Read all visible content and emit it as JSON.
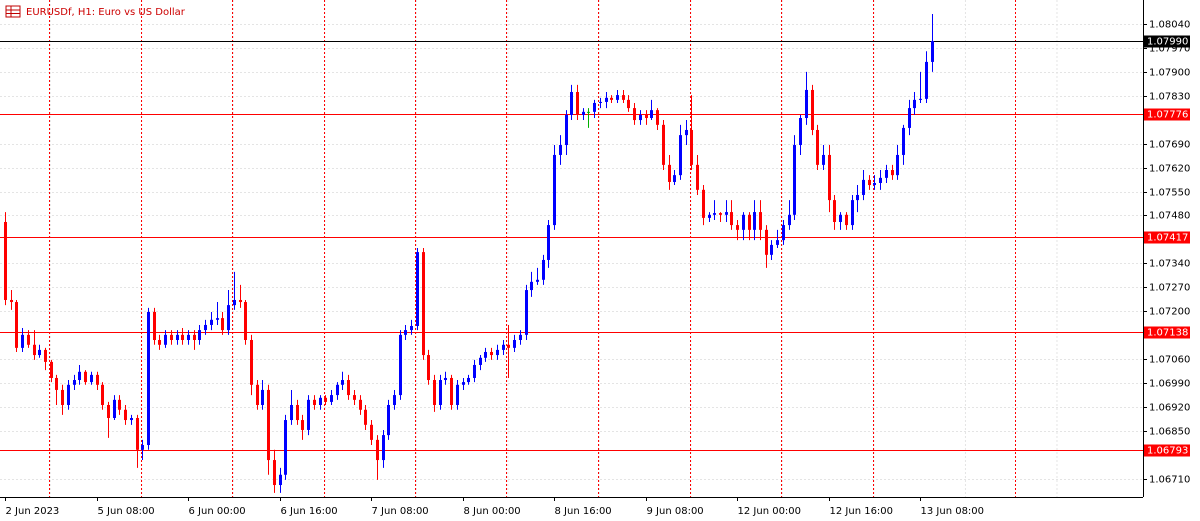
{
  "chart_data": {
    "type": "candlestick",
    "title": "EURUSDf, H1:  Euro vs US Dollar",
    "title_color": "#cc0000",
    "up_color": "#0000ff",
    "down_color": "#ff0000",
    "doji_color": "#00b000",
    "level_color": "#ff0000",
    "bid_color": "#000000",
    "grid": true,
    "ylim": [
      1.06657,
      1.0811
    ],
    "yticks": [
      {
        "value": 1.0804,
        "label": "1.08040"
      },
      {
        "value": 1.0797,
        "label": "1.07970"
      },
      {
        "value": 1.079,
        "label": "1.07900"
      },
      {
        "value": 1.0783,
        "label": "1.07830"
      },
      {
        "value": 1.0769,
        "label": "1.07690"
      },
      {
        "value": 1.0762,
        "label": "1.07620"
      },
      {
        "value": 1.0755,
        "label": "1.07550"
      },
      {
        "value": 1.0748,
        "label": "1.07480"
      },
      {
        "value": 1.0734,
        "label": "1.07340"
      },
      {
        "value": 1.0727,
        "label": "1.07270"
      },
      {
        "value": 1.072,
        "label": "1.07200"
      },
      {
        "value": 1.0706,
        "label": "1.07060"
      },
      {
        "value": 1.0699,
        "label": "1.06990"
      },
      {
        "value": 1.0692,
        "label": "1.06920"
      },
      {
        "value": 1.0685,
        "label": "1.06850"
      },
      {
        "value": 1.0671,
        "label": "1.06710"
      }
    ],
    "levels": [
      1.07776,
      1.07417,
      1.07138,
      1.06793
    ],
    "bid": {
      "value": 1.0799,
      "label": "1.07990"
    },
    "categories": [
      "2 Jun 2023",
      null,
      null,
      null,
      null,
      null,
      null,
      null,
      null,
      null,
      null,
      null,
      null,
      null,
      null,
      null,
      "5 Jun 08:00",
      null,
      null,
      null,
      null,
      null,
      null,
      null,
      null,
      null,
      null,
      null,
      null,
      null,
      null,
      null,
      "6 Jun 00:00",
      null,
      null,
      null,
      null,
      null,
      null,
      null,
      null,
      null,
      null,
      null,
      null,
      null,
      null,
      null,
      "6 Jun 16:00",
      null,
      null,
      null,
      null,
      null,
      null,
      null,
      null,
      null,
      null,
      null,
      null,
      null,
      null,
      null,
      "7 Jun 08:00",
      null,
      null,
      null,
      null,
      null,
      null,
      null,
      null,
      null,
      null,
      null,
      null,
      null,
      null,
      null,
      "8 Jun 00:00",
      null,
      null,
      null,
      null,
      null,
      null,
      null,
      null,
      null,
      null,
      null,
      null,
      null,
      null,
      null,
      "8 Jun 16:00",
      null,
      null,
      null,
      null,
      null,
      null,
      null,
      null,
      null,
      null,
      null,
      null,
      null,
      null,
      null,
      "9 Jun 08:00",
      null,
      null,
      null,
      null,
      null,
      null,
      null,
      null,
      null,
      null,
      null,
      null,
      null,
      null,
      null,
      "12 Jun 00:00",
      null,
      null,
      null,
      null,
      null,
      null,
      null,
      null,
      null,
      null,
      null,
      null,
      null,
      null,
      null,
      "12 Jun 16:00",
      null,
      null,
      null,
      null,
      null,
      null,
      null,
      null,
      null,
      null,
      null,
      null,
      null,
      null,
      null,
      "13 Jun 08:00",
      null,
      null
    ],
    "open": [
      1.07461,
      1.07233,
      1.07227,
      1.07093,
      1.07131,
      1.07102,
      1.07072,
      1.07087,
      1.07052,
      1.07005,
      1.0697,
      1.06926,
      1.06985,
      1.06999,
      1.07023,
      1.06993,
      1.07014,
      1.06985,
      1.06926,
      1.06888,
      1.06941,
      1.06912,
      1.06882,
      1.06888,
      1.06795,
      1.06809,
      1.07198,
      1.07116,
      1.07102,
      1.07131,
      1.07116,
      1.07131,
      1.07116,
      1.07131,
      1.07116,
      1.07145,
      1.0716,
      1.07175,
      1.0718,
      1.07145,
      1.07218,
      1.07233,
      1.07227,
      1.07116,
      1.06985,
      1.06926,
      1.0697,
      1.06765,
      1.06692,
      1.06722,
      1.06882,
      1.06926,
      1.06882,
      1.06853,
      1.06941,
      1.06926,
      1.06947,
      1.06935,
      1.06955,
      1.06985,
      1.06999,
      1.06955,
      1.06941,
      1.06912,
      1.06868,
      1.06824,
      1.06765,
      1.06838,
      1.06926,
      1.06955,
      1.07131,
      1.07145,
      1.07157,
      1.07373,
      1.07072,
      1.06999,
      1.06926,
      1.06999,
      1.07005,
      1.06926,
      1.06985,
      1.06993,
      1.07005,
      1.07043,
      1.07064,
      1.07081,
      1.07072,
      1.07087,
      1.07102,
      1.07093,
      1.07116,
      1.07131,
      1.07262,
      1.07286,
      1.07292,
      1.0735,
      1.07452,
      1.07657,
      1.07686,
      1.07774,
      1.07841,
      1.07774,
      1.07783,
      1.07783,
      1.07809,
      1.07812,
      1.07824,
      1.07818,
      1.07832,
      1.07818,
      1.07794,
      1.07759,
      1.07774,
      1.07765,
      1.07788,
      1.07745,
      1.07628,
      1.07578,
      1.07598,
      1.07715,
      1.0773,
      1.07628,
      1.07555,
      1.07473,
      1.07482,
      1.07487,
      1.07482,
      1.0749,
      1.07452,
      1.07438,
      1.07482,
      1.07438,
      1.0749,
      1.07438,
      1.07365,
      1.07394,
      1.07408,
      1.07452,
      1.07482,
      1.07686,
      1.07765,
      1.07847,
      1.0773,
      1.07628,
      1.07657,
      1.07525,
      1.07461,
      1.07482,
      1.07452,
      1.07525,
      1.0754,
      1.07584,
      1.07569,
      1.07575,
      1.0759,
      1.07613,
      1.07598,
      1.07657,
      1.07736,
      1.07794,
      1.07818,
      1.07821,
      1.07929
    ],
    "high": [
      1.0749,
      1.07262,
      1.07233,
      1.07151,
      1.07145,
      1.07145,
      1.07102,
      1.07093,
      1.07058,
      1.07014,
      1.06985,
      1.06999,
      1.07014,
      1.07043,
      1.07028,
      1.07023,
      1.07023,
      1.06993,
      1.06935,
      1.06955,
      1.06955,
      1.06926,
      1.06897,
      1.06897,
      1.06824,
      1.0721,
      1.0721,
      1.07131,
      1.07145,
      1.07145,
      1.07145,
      1.07151,
      1.07145,
      1.07145,
      1.0716,
      1.07175,
      1.07198,
      1.07227,
      1.07198,
      1.07262,
      1.07315,
      1.07277,
      1.07233,
      1.07131,
      1.06999,
      1.06999,
      1.06985,
      1.06795,
      1.06742,
      1.06897,
      1.0697,
      1.06941,
      1.06897,
      1.06955,
      1.06955,
      1.06955,
      1.06955,
      1.0697,
      1.06993,
      1.07023,
      1.07014,
      1.0697,
      1.06955,
      1.06926,
      1.06882,
      1.06838,
      1.06853,
      1.06941,
      1.0697,
      1.07145,
      1.0716,
      1.07175,
      1.07385,
      1.07385,
      1.07087,
      1.07014,
      1.07014,
      1.07023,
      1.07014,
      1.06999,
      1.07005,
      1.07014,
      1.07058,
      1.07072,
      1.07093,
      1.07093,
      1.07102,
      1.07116,
      1.0716,
      1.07131,
      1.07145,
      1.07277,
      1.07315,
      1.07327,
      1.07365,
      1.07467,
      1.07686,
      1.07715,
      1.07788,
      1.07862,
      1.07862,
      1.07794,
      1.07794,
      1.07818,
      1.07824,
      1.07841,
      1.07832,
      1.07847,
      1.07847,
      1.07832,
      1.07809,
      1.07788,
      1.07788,
      1.07818,
      1.07794,
      1.07759,
      1.07657,
      1.07613,
      1.07745,
      1.07759,
      1.07832,
      1.07657,
      1.07569,
      1.0749,
      1.07525,
      1.0749,
      1.07525,
      1.07525,
      1.07467,
      1.0749,
      1.0749,
      1.07525,
      1.07525,
      1.07452,
      1.07408,
      1.07438,
      1.07467,
      1.07525,
      1.07715,
      1.07774,
      1.079,
      1.07862,
      1.07745,
      1.07686,
      1.07686,
      1.0754,
      1.0749,
      1.0749,
      1.0754,
      1.07569,
      1.07613,
      1.07598,
      1.07598,
      1.07613,
      1.07628,
      1.07628,
      1.07686,
      1.07745,
      1.07818,
      1.07841,
      1.079,
      1.0796,
      1.08069
    ],
    "low": [
      1.07218,
      1.07204,
      1.07081,
      1.07081,
      1.07093,
      1.07058,
      1.07064,
      1.07028,
      1.06993,
      1.06926,
      1.06897,
      1.06912,
      1.0697,
      1.06985,
      1.06985,
      1.06985,
      1.0697,
      1.06912,
      1.0683,
      1.06882,
      1.06897,
      1.06868,
      1.06868,
      1.06742,
      1.06765,
      1.06795,
      1.07102,
      1.07087,
      1.07093,
      1.07102,
      1.07102,
      1.07102,
      1.07102,
      1.07087,
      1.07102,
      1.07131,
      1.07145,
      1.0716,
      1.07131,
      1.07131,
      1.07204,
      1.0721,
      1.07102,
      1.06955,
      1.06912,
      1.06912,
      1.06722,
      1.06669,
      1.06669,
      1.06707,
      1.06868,
      1.06868,
      1.06824,
      1.06838,
      1.06912,
      1.06912,
      1.06926,
      1.06926,
      1.06941,
      1.0697,
      1.06941,
      1.06926,
      1.06897,
      1.06853,
      1.06809,
      1.06707,
      1.06742,
      1.06824,
      1.06912,
      1.06941,
      1.07116,
      1.07131,
      1.07145,
      1.07058,
      1.06985,
      1.06906,
      1.06912,
      1.06985,
      1.06912,
      1.06912,
      1.0697,
      1.06985,
      1.06993,
      1.07028,
      1.07052,
      1.07058,
      1.07058,
      1.07072,
      1.07005,
      1.07081,
      1.07102,
      1.07116,
      1.07242,
      1.07277,
      1.07277,
      1.07327,
      1.07438,
      1.07628,
      1.07657,
      1.07759,
      1.07759,
      1.07759,
      1.07736,
      1.07765,
      1.07794,
      1.07794,
      1.07809,
      1.07809,
      1.07809,
      1.07783,
      1.07745,
      1.07745,
      1.07745,
      1.07759,
      1.0773,
      1.07613,
      1.07555,
      1.07569,
      1.07584,
      1.07686,
      1.07613,
      1.0754,
      1.07452,
      1.07461,
      1.07467,
      1.07461,
      1.07461,
      1.07438,
      1.07408,
      1.07408,
      1.07408,
      1.07408,
      1.07408,
      1.07327,
      1.0735,
      1.07385,
      1.07394,
      1.07438,
      1.07467,
      1.07657,
      1.07745,
      1.07715,
      1.07613,
      1.07613,
      1.0749,
      1.07438,
      1.07438,
      1.07438,
      1.07438,
      1.0749,
      1.07525,
      1.07555,
      1.07555,
      1.07555,
      1.07575,
      1.07584,
      1.07584,
      1.07628,
      1.07715,
      1.07774,
      1.07809,
      1.07809,
      1.079
    ],
    "close": [
      1.07233,
      1.07227,
      1.07093,
      1.07131,
      1.07102,
      1.07072,
      1.07087,
      1.07052,
      1.07005,
      1.0697,
      1.06926,
      1.06985,
      1.06999,
      1.07023,
      1.06993,
      1.07014,
      1.06985,
      1.06926,
      1.06888,
      1.06941,
      1.06912,
      1.06882,
      1.06888,
      1.06795,
      1.06809,
      1.07198,
      1.07116,
      1.07102,
      1.07131,
      1.07116,
      1.07131,
      1.07116,
      1.07131,
      1.07116,
      1.07145,
      1.0716,
      1.07175,
      1.0718,
      1.07145,
      1.07218,
      1.07233,
      1.07227,
      1.07116,
      1.06985,
      1.06926,
      1.0697,
      1.06765,
      1.06692,
      1.06722,
      1.06882,
      1.06926,
      1.06882,
      1.06853,
      1.06941,
      1.06926,
      1.06947,
      1.06935,
      1.06955,
      1.06985,
      1.06999,
      1.06955,
      1.06941,
      1.06912,
      1.06868,
      1.06824,
      1.06765,
      1.06838,
      1.06926,
      1.06955,
      1.07131,
      1.07145,
      1.07157,
      1.07373,
      1.07072,
      1.06999,
      1.06926,
      1.06999,
      1.07005,
      1.06926,
      1.06985,
      1.06993,
      1.07005,
      1.07043,
      1.07064,
      1.07081,
      1.07072,
      1.07087,
      1.07102,
      1.07093,
      1.07116,
      1.07131,
      1.07262,
      1.07286,
      1.07292,
      1.0735,
      1.07452,
      1.07657,
      1.07686,
      1.07774,
      1.07841,
      1.07774,
      1.07783,
      1.07783,
      1.07809,
      1.07812,
      1.07824,
      1.07818,
      1.07832,
      1.07818,
      1.07794,
      1.07759,
      1.07774,
      1.07765,
      1.07788,
      1.07745,
      1.07628,
      1.07578,
      1.07598,
      1.07715,
      1.0773,
      1.07628,
      1.07555,
      1.07473,
      1.07482,
      1.07487,
      1.07482,
      1.0749,
      1.07452,
      1.07438,
      1.07482,
      1.07438,
      1.0749,
      1.07438,
      1.07365,
      1.07394,
      1.07408,
      1.07452,
      1.07482,
      1.07686,
      1.07765,
      1.07847,
      1.0773,
      1.07628,
      1.07657,
      1.07525,
      1.07461,
      1.07482,
      1.07452,
      1.07525,
      1.0754,
      1.07584,
      1.07569,
      1.07575,
      1.0759,
      1.07613,
      1.07598,
      1.07657,
      1.07736,
      1.07794,
      1.07818,
      1.07821,
      1.07929,
      1.0799
    ]
  }
}
